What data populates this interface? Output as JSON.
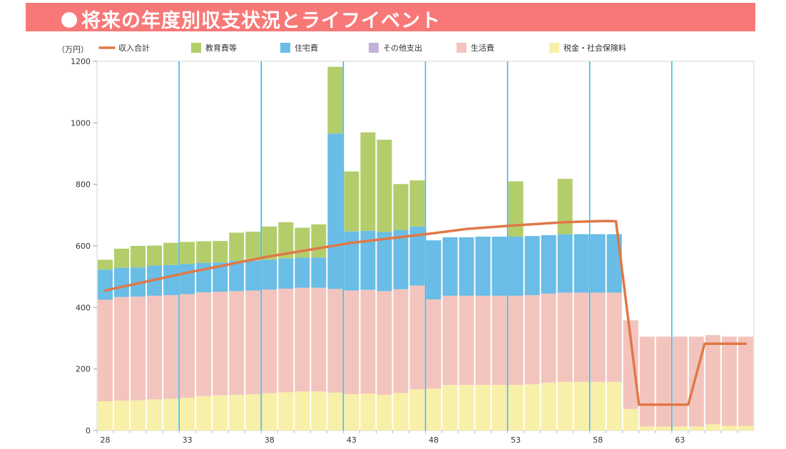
{
  "banner": {
    "title": "将来の年度別収支状況とライフイベント"
  },
  "chart_data": {
    "type": "bar",
    "stacked": true,
    "title": "将来の年度別収支状況とライフイベント",
    "unit_label": "（万円）",
    "ylim": [
      0,
      1200
    ],
    "yticks": [
      0,
      200,
      400,
      600,
      800,
      1000,
      1200
    ],
    "xlim": [
      27.5,
      67.5
    ],
    "xticks": [
      28,
      33,
      38,
      43,
      48,
      53,
      58,
      63
    ],
    "event_lines_at": [
      32.5,
      37.5,
      42.5,
      47.5,
      52.5,
      57.5,
      62.5
    ],
    "colors": {
      "income": "#e07848",
      "education": "#b3cd6b",
      "housing": "#69bde6",
      "other": "#c3b2d6",
      "living": "#f3c4bd",
      "tax": "#f8efa8",
      "event_line": "#3bb9ea"
    },
    "legend": [
      {
        "key": "income",
        "label": "収入合計"
      },
      {
        "key": "education",
        "label": "教育費等"
      },
      {
        "key": "housing",
        "label": "住宅費"
      },
      {
        "key": "other",
        "label": "その他支出"
      },
      {
        "key": "living",
        "label": "生活費"
      },
      {
        "key": "tax",
        "label": "税金・社会保険料"
      }
    ],
    "ages": [
      28,
      29,
      30,
      31,
      32,
      33,
      34,
      35,
      36,
      37,
      38,
      39,
      40,
      41,
      42,
      43,
      44,
      45,
      46,
      47,
      48,
      49,
      50,
      51,
      52,
      53,
      54,
      55,
      56,
      57,
      58,
      59,
      60,
      61,
      62,
      63,
      64,
      65,
      66,
      67
    ],
    "series": [
      {
        "key": "tax",
        "name": "税金・社会保険料",
        "values": [
          95,
          97,
          98,
          101,
          103,
          106,
          112,
          114,
          116,
          118,
          121,
          124,
          127,
          127,
          123,
          118,
          120,
          116,
          122,
          134,
          136,
          148,
          148,
          148,
          148,
          148,
          150,
          155,
          158,
          158,
          158,
          158,
          70,
          13,
          13,
          13,
          13,
          20,
          15,
          15
        ]
      },
      {
        "key": "living",
        "name": "生活費",
        "values": [
          330,
          337,
          337,
          337,
          337,
          337,
          337,
          337,
          337,
          337,
          337,
          337,
          337,
          337,
          337,
          337,
          337,
          337,
          337,
          337,
          290,
          290,
          290,
          290,
          290,
          290,
          290,
          290,
          290,
          290,
          290,
          290,
          288,
          292,
          292,
          292,
          292,
          290,
          290,
          290
        ]
      },
      {
        "key": "other",
        "name": "その他支出",
        "values": [
          0,
          0,
          0,
          0,
          0,
          0,
          0,
          0,
          0,
          0,
          0,
          0,
          0,
          0,
          0,
          0,
          0,
          0,
          0,
          0,
          0,
          0,
          0,
          0,
          0,
          0,
          0,
          0,
          0,
          0,
          0,
          0,
          0,
          0,
          0,
          0,
          0,
          0,
          0,
          0
        ]
      },
      {
        "key": "housing",
        "name": "住宅費",
        "values": [
          98,
          95,
          95,
          98,
          98,
          98,
          96,
          95,
          98,
          97,
          97,
          98,
          98,
          98,
          505,
          192,
          192,
          192,
          192,
          192,
          192,
          190,
          190,
          192,
          192,
          192,
          192,
          190,
          190,
          190,
          190,
          190,
          0,
          0,
          0,
          0,
          0,
          0,
          0,
          0
        ]
      },
      {
        "key": "education",
        "name": "教育費等",
        "values": [
          32,
          62,
          70,
          65,
          72,
          72,
          70,
          70,
          92,
          94,
          108,
          118,
          97,
          108,
          217,
          195,
          320,
          300,
          150,
          150,
          0,
          0,
          0,
          0,
          0,
          180,
          0,
          0,
          180,
          0,
          0,
          0,
          0,
          0,
          0,
          0,
          0,
          0,
          0,
          0
        ]
      }
    ],
    "income": {
      "name": "収入合計",
      "points": [
        [
          28,
          455
        ],
        [
          33,
          513
        ],
        [
          38,
          566
        ],
        [
          43,
          610
        ],
        [
          48,
          641
        ],
        [
          50,
          655
        ],
        [
          53,
          667
        ],
        [
          56,
          677
        ],
        [
          58.5,
          681
        ],
        [
          59.1,
          680
        ],
        [
          60.5,
          84
        ],
        [
          63.5,
          84
        ],
        [
          64.5,
          282
        ],
        [
          67,
          282
        ]
      ]
    }
  }
}
